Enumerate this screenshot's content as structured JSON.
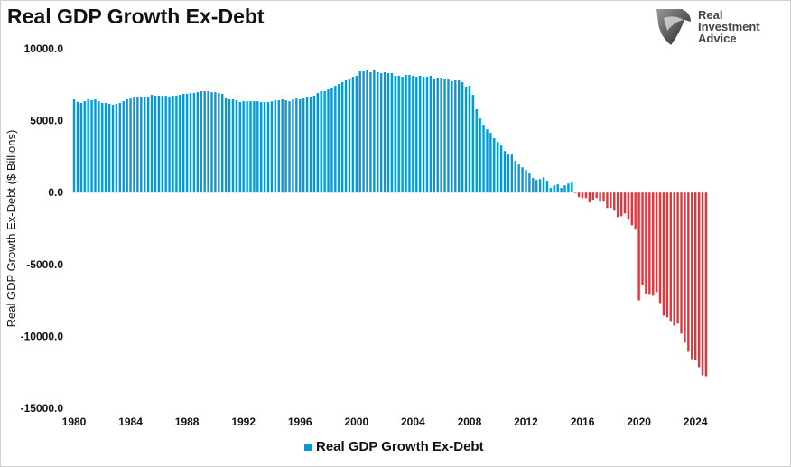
{
  "chart_data": {
    "type": "bar",
    "title": "Real GDP Growth Ex-Debt",
    "ylabel": "Real GDP Growth Ex-Debt ($ Billions)",
    "xlabel": "",
    "ylim": [
      -15000,
      10000
    ],
    "yticks": [
      "10000.0",
      "5000.0",
      "0.0",
      "-5000.0",
      "-10000.0",
      "-15000.0"
    ],
    "xticks": [
      "1980",
      "1984",
      "1988",
      "1992",
      "1996",
      "2000",
      "2004",
      "2008",
      "2012",
      "2016",
      "2020",
      "2024"
    ],
    "x_start": "1980 Q1",
    "x_end": "2024 Q4",
    "frequency": "quarterly",
    "grid": false,
    "legend": "bottom",
    "series": [
      {
        "name": "Real GDP Growth Ex-Debt",
        "positive_color": "#0099dd",
        "negative_color": "#e8323a",
        "values": [
          6480,
          6310,
          6230,
          6350,
          6480,
          6420,
          6480,
          6350,
          6230,
          6230,
          6170,
          6100,
          6170,
          6230,
          6350,
          6480,
          6540,
          6670,
          6670,
          6670,
          6670,
          6670,
          6790,
          6730,
          6730,
          6730,
          6730,
          6670,
          6730,
          6730,
          6790,
          6860,
          6860,
          6920,
          6920,
          6980,
          7050,
          7050,
          7050,
          6980,
          6980,
          6920,
          6860,
          6560,
          6480,
          6480,
          6420,
          6290,
          6350,
          6350,
          6350,
          6350,
          6350,
          6290,
          6290,
          6290,
          6350,
          6420,
          6420,
          6480,
          6420,
          6350,
          6480,
          6540,
          6480,
          6610,
          6670,
          6670,
          6730,
          6920,
          7050,
          7050,
          7170,
          7300,
          7420,
          7550,
          7680,
          7800,
          7930,
          8050,
          8120,
          8430,
          8430,
          8560,
          8370,
          8560,
          8370,
          8300,
          8370,
          8300,
          8300,
          8120,
          8120,
          8050,
          8180,
          8180,
          8120,
          8050,
          8120,
          8050,
          8050,
          8120,
          7930,
          7990,
          7990,
          7930,
          7860,
          7740,
          7800,
          7800,
          7680,
          7360,
          7420,
          6790,
          5790,
          5160,
          4720,
          4400,
          4150,
          3780,
          3520,
          3270,
          2890,
          2640,
          2640,
          2200,
          1950,
          1760,
          1570,
          1380,
          1010,
          880,
          940,
          1070,
          820,
          320,
          500,
          570,
          320,
          500,
          630,
          690,
          -20,
          -320,
          -380,
          -380,
          -690,
          -500,
          -380,
          -630,
          -630,
          -1070,
          -1070,
          -1260,
          -1700,
          -1640,
          -1450,
          -1890,
          -2270,
          -2580,
          -7490,
          -6420,
          -7050,
          -7110,
          -7170,
          -6920,
          -7680,
          -8560,
          -8680,
          -8930,
          -9250,
          -9120,
          -9810,
          -10440,
          -11070,
          -11580,
          -11640,
          -12140,
          -12710,
          -12770
        ]
      }
    ]
  },
  "logo": {
    "text_line1": "Real",
    "text_line2": "Investment",
    "text_line3": "Advice"
  }
}
